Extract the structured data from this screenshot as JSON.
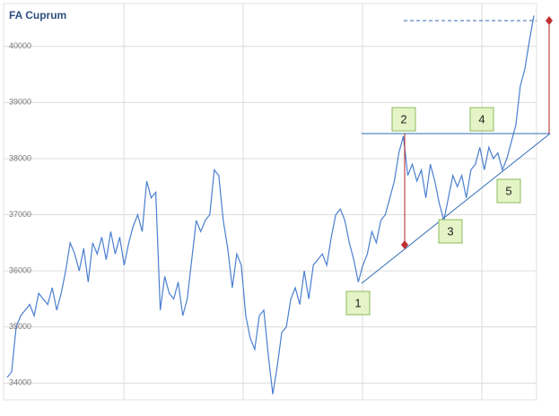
{
  "chart_data": {
    "type": "line",
    "title": "FA Cuprum",
    "values": [
      34100,
      34200,
      35000,
      35200,
      35300,
      35400,
      35200,
      35600,
      35500,
      35400,
      35700,
      35300,
      35600,
      36000,
      36500,
      36300,
      36000,
      36400,
      35800,
      36500,
      36300,
      36600,
      36200,
      36700,
      36300,
      36600,
      36100,
      36500,
      36800,
      37000,
      36700,
      37600,
      37300,
      37400,
      35300,
      35900,
      35600,
      35500,
      35800,
      35200,
      35500,
      36200,
      36900,
      36700,
      36900,
      37000,
      37800,
      37700,
      36900,
      36400,
      35700,
      36300,
      36100,
      35200,
      34800,
      34600,
      35200,
      35300,
      34500,
      33800,
      34300,
      34900,
      35000,
      35500,
      35700,
      35400,
      36000,
      35500,
      36100,
      36200,
      36300,
      36100,
      36600,
      37000,
      37100,
      36900,
      36500,
      36200,
      35800,
      36100,
      36300,
      36700,
      36500,
      36900,
      37000,
      37300,
      37600,
      38100,
      38400,
      37700,
      37900,
      37600,
      37800,
      37300,
      37900,
      37600,
      37200,
      36900,
      37300,
      37700,
      37500,
      37700,
      37300,
      37800,
      37900,
      38200,
      37800,
      38200,
      38000,
      38100,
      37800,
      38000,
      38300,
      38600,
      39300,
      39600,
      40100,
      40550
    ],
    "color": "#4a7fd0",
    "ylim": [
      33700,
      40700
    ],
    "yticks": [
      34000,
      35000,
      36000,
      37000,
      38000,
      39000,
      40000
    ],
    "grid": true,
    "annotations": [
      "1",
      "2",
      "3",
      "4",
      "5"
    ]
  }
}
